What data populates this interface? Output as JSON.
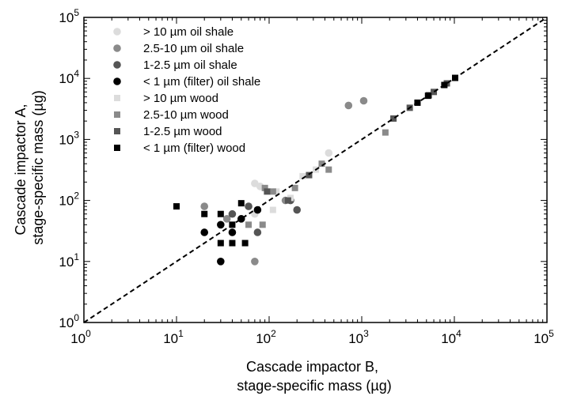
{
  "chart_data": {
    "type": "scatter",
    "x_scale": "log",
    "y_scale": "log",
    "xlim": [
      1,
      100000
    ],
    "ylim": [
      1,
      100000
    ],
    "x_ticks": [
      {
        "base": "10",
        "exp": "0",
        "value": 1
      },
      {
        "base": "10",
        "exp": "1",
        "value": 10
      },
      {
        "base": "10",
        "exp": "2",
        "value": 100
      },
      {
        "base": "10",
        "exp": "3",
        "value": 1000
      },
      {
        "base": "10",
        "exp": "4",
        "value": 10000
      },
      {
        "base": "10",
        "exp": "5",
        "value": 100000
      }
    ],
    "y_ticks": [
      {
        "base": "10",
        "exp": "0",
        "value": 1
      },
      {
        "base": "10",
        "exp": "1",
        "value": 10
      },
      {
        "base": "10",
        "exp": "2",
        "value": 100
      },
      {
        "base": "10",
        "exp": "3",
        "value": 1000
      },
      {
        "base": "10",
        "exp": "4",
        "value": 10000
      },
      {
        "base": "10",
        "exp": "5",
        "value": 100000
      }
    ],
    "xlabel": [
      "Cascade impactor B,",
      "stage-specific mass (µg)"
    ],
    "ylabel": [
      "Cascade impactor A,",
      "stage-specific mass (µg)"
    ],
    "reference_line": {
      "style": "dashed",
      "from": [
        1,
        1
      ],
      "to": [
        100000,
        100000
      ],
      "color": "#000000"
    },
    "grid": false,
    "legend_position": "top-left",
    "series": [
      {
        "name": "> 10 µm oil shale",
        "marker": "circle",
        "color": "#dcdcdc",
        "points": [
          [
            70,
            190
          ],
          [
            80,
            170
          ],
          [
            70,
            60
          ],
          [
            440,
            600
          ]
        ]
      },
      {
        "name": "2.5-10 µm oil shale",
        "marker": "circle",
        "color": "#8a8a8a",
        "points": [
          [
            20,
            80
          ],
          [
            35,
            50
          ],
          [
            70,
            10
          ],
          [
            150,
            100
          ],
          [
            720,
            3600
          ],
          [
            1050,
            4300
          ]
        ]
      },
      {
        "name": "1-2.5 µm oil shale",
        "marker": "circle",
        "color": "#555555",
        "points": [
          [
            40,
            60
          ],
          [
            60,
            80
          ],
          [
            75,
            30
          ],
          [
            170,
            100
          ],
          [
            200,
            70
          ]
        ]
      },
      {
        "name": "< 1 µm (filter) oil shale",
        "marker": "circle",
        "color": "#000000",
        "points": [
          [
            20,
            30
          ],
          [
            30,
            10
          ],
          [
            30,
            40
          ],
          [
            40,
            30
          ],
          [
            50,
            50
          ],
          [
            75,
            70
          ]
        ]
      },
      {
        "name": "> 10 µm wood",
        "marker": "square",
        "color": "#dcdcdc",
        "points": [
          [
            110,
            70
          ],
          [
            120,
            140
          ],
          [
            170,
            110
          ],
          [
            230,
            250
          ],
          [
            320,
            320
          ]
        ]
      },
      {
        "name": "2.5-10 µm wood",
        "marker": "square",
        "color": "#8a8a8a",
        "points": [
          [
            60,
            40
          ],
          [
            85,
            40
          ],
          [
            90,
            160
          ],
          [
            110,
            140
          ],
          [
            190,
            160
          ],
          [
            370,
            400
          ],
          [
            440,
            320
          ],
          [
            1800,
            1300
          ]
        ]
      },
      {
        "name": "1-2.5 µm wood",
        "marker": "square",
        "color": "#555555",
        "points": [
          [
            95,
            140
          ],
          [
            160,
            100
          ],
          [
            270,
            260
          ],
          [
            2200,
            2200
          ],
          [
            3300,
            3300
          ],
          [
            5300,
            5300
          ],
          [
            6000,
            6000
          ],
          [
            8300,
            8300
          ]
        ]
      },
      {
        "name": "< 1 µm (filter) wood",
        "marker": "square",
        "color": "#000000",
        "points": [
          [
            10,
            80
          ],
          [
            20,
            60
          ],
          [
            30,
            20
          ],
          [
            30,
            60
          ],
          [
            40,
            20
          ],
          [
            40,
            40
          ],
          [
            50,
            90
          ],
          [
            55,
            20
          ],
          [
            4000,
            4000
          ],
          [
            5200,
            5200
          ],
          [
            7800,
            7800
          ],
          [
            10200,
            10200
          ]
        ]
      }
    ]
  }
}
